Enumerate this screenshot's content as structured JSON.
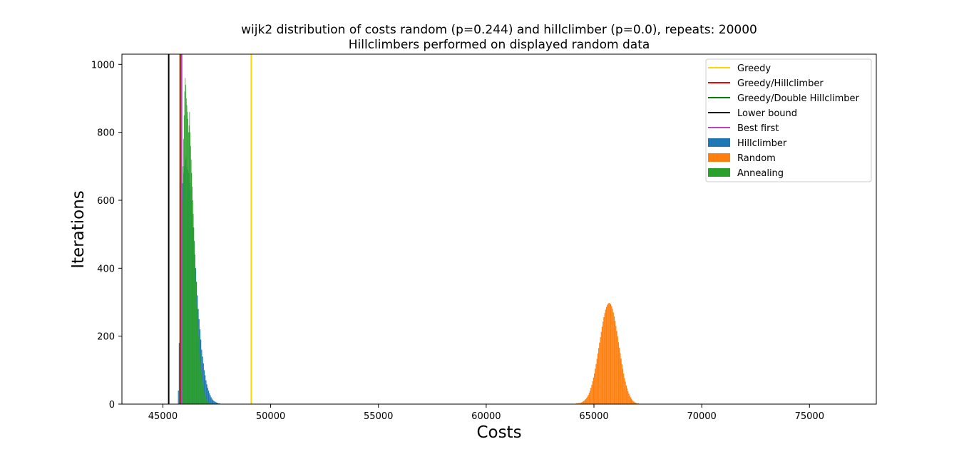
{
  "chart_data": {
    "type": "histogram",
    "title": "wijk2 distribution of costs random (p=0.244) and hillclimber (p=0.0), repeats: 20000",
    "subtitle": "Hillclimbers performed on displayed random data",
    "xlabel": "Costs",
    "ylabel": "Iterations",
    "xlim": [
      43100,
      78100
    ],
    "ylim": [
      0,
      1030
    ],
    "x_ticks": [
      45000,
      50000,
      55000,
      60000,
      65000,
      70000,
      75000
    ],
    "y_ticks": [
      0,
      200,
      400,
      600,
      800,
      1000
    ],
    "grid": false,
    "legend_position": "top-right",
    "vlines": [
      {
        "name": "Greedy",
        "x": 49100,
        "color": "#ffd700"
      },
      {
        "name": "Greedy/Hillclimber",
        "x": 45800,
        "color": "#ff0000"
      },
      {
        "name": "Greedy/Double Hillclimber",
        "x": 45830,
        "color": "#008000"
      },
      {
        "name": "Lower bound",
        "x": 45270,
        "color": "#000000"
      },
      {
        "name": "Best first",
        "x": 45870,
        "color": "#bf3fbf"
      }
    ],
    "series": [
      {
        "name": "Hillclimber",
        "color": "#1f77b4",
        "bin_edges_start": 45700,
        "bin_width": 40,
        "values": [
          40,
          180,
          350,
          520,
          600,
          650,
          680,
          700,
          720,
          730,
          700,
          690,
          680,
          650,
          630,
          600,
          560,
          520,
          480,
          440,
          400,
          360,
          320,
          280,
          250,
          220,
          190,
          160,
          140,
          120,
          100,
          85,
          70,
          58,
          48,
          40,
          32,
          26,
          20,
          16,
          12,
          10,
          8,
          6,
          5,
          4,
          3,
          2,
          2,
          1,
          1,
          1,
          1,
          1,
          1,
          1,
          1,
          1,
          1,
          1
        ]
      },
      {
        "name": "Random",
        "color": "#ff7f0e",
        "bin_edges_start": 64000,
        "bin_width": 40,
        "values": [
          1,
          1,
          1,
          1,
          2,
          2,
          2,
          3,
          3,
          4,
          5,
          6,
          8,
          10,
          12,
          15,
          18,
          22,
          27,
          33,
          40,
          48,
          57,
          67,
          78,
          90,
          104,
          118,
          133,
          149,
          165,
          181,
          197,
          213,
          228,
          243,
          256,
          268,
          278,
          286,
          292,
          296,
          298,
          297,
          294,
          288,
          280,
          270,
          258,
          245,
          230,
          215,
          199,
          182,
          166,
          150,
          134,
          118,
          104,
          90,
          77,
          66,
          55,
          46,
          38,
          31,
          25,
          20,
          16,
          12,
          9,
          7,
          5,
          4,
          3,
          2,
          2,
          1,
          1,
          1
        ]
      },
      {
        "name": "Annealing",
        "color": "#2ca02c",
        "bin_edges_start": 45800,
        "bin_width": 25,
        "values": [
          30,
          150,
          320,
          480,
          600,
          700,
          780,
          850,
          920,
          960,
          940,
          900,
          880,
          860,
          840,
          800,
          820,
          860,
          800,
          760,
          720,
          680,
          640,
          600,
          560,
          520,
          480,
          440,
          400,
          360,
          320,
          290,
          260,
          230,
          200,
          175,
          150,
          130,
          110,
          95,
          80,
          68,
          56,
          46,
          38,
          30,
          24,
          19,
          15,
          12,
          9,
          7,
          5,
          4,
          3,
          2,
          2,
          1,
          1,
          1
        ]
      }
    ]
  }
}
